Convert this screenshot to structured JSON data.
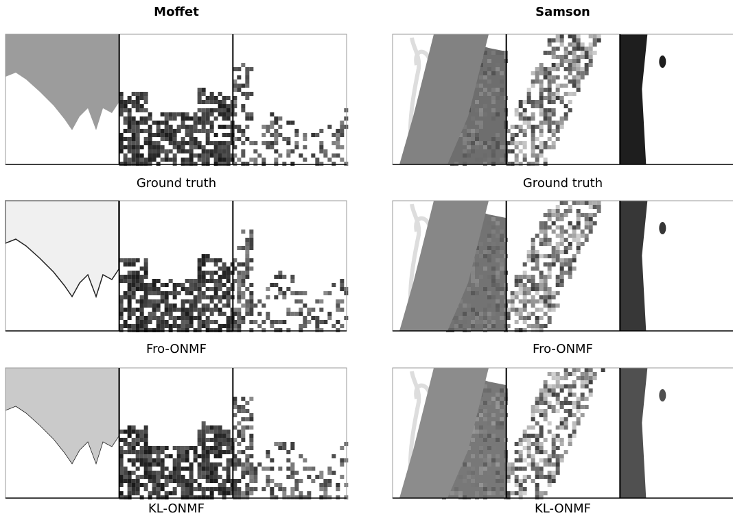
{
  "columns": [
    {
      "title": "Moffet",
      "rows": [
        "Ground truth",
        "Fro-ONMF",
        "KL-ONMF"
      ]
    },
    {
      "title": "Samson",
      "rows": [
        "Ground truth",
        "Fro-ONMF",
        "KL-ONMF"
      ]
    }
  ]
}
